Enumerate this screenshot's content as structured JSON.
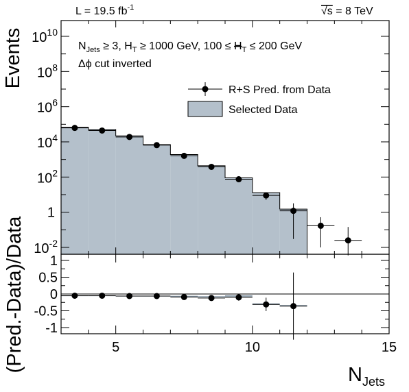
{
  "header": {
    "luminosity": "L = 19.5 fb",
    "luminosity_exp": "-1",
    "energy_sqrt": "√s",
    "energy_rest": " = 8 TeV"
  },
  "annotation": {
    "line1": {
      "n": "N",
      "n_sub": "Jets",
      "ge3": " ≥ 3, H",
      "t_sub": "T",
      "ht_cut": " ≥ 1000 GeV, 100 ≤ ",
      "mht": "H",
      "t_sub2": "T",
      "mht_cut": " ≤ 200 GeV"
    },
    "line2": "Δϕ cut inverted"
  },
  "chart_data": [
    {
      "type": "bar",
      "panel": "top",
      "title": "",
      "ylabel": "Events",
      "xlabel": "",
      "y_scale": "log",
      "ylim": [
        0.003,
        100000000000.0
      ],
      "xlim": [
        3,
        15
      ],
      "y_tick_labels": [
        "10^-2",
        "1",
        "10^2",
        "10^4",
        "10^6",
        "10^8",
        "10^10"
      ],
      "legend": {
        "position": "top-right",
        "entries": [
          "R+S Pred. from Data",
          "Selected Data"
        ]
      },
      "series": [
        {
          "name": "Selected Data",
          "style": "filled-histogram",
          "color": "#b4c0cb",
          "bin_edges": [
            3,
            4,
            5,
            6,
            7,
            8,
            9,
            10,
            11,
            12
          ],
          "values": [
            68000,
            50000,
            22000,
            7000,
            1900,
            440,
            90,
            13,
            1.5
          ]
        },
        {
          "name": "R+S Pred. from Data",
          "style": "points-with-errors",
          "color": "#000000",
          "x": [
            3.5,
            4.5,
            5.5,
            6.5,
            7.5,
            8.5,
            9.5,
            10.5,
            11.5,
            12.5,
            13.5
          ],
          "y": [
            62000,
            44000,
            19000,
            6500,
            1600,
            380,
            75,
            9,
            1.2,
            0.17,
            0.025
          ],
          "y_err_low": [
            6000,
            4000,
            2000,
            600,
            200,
            50,
            15,
            4,
            1.17,
            0.16,
            0.022
          ],
          "y_err_high": [
            6000,
            4000,
            2000,
            600,
            200,
            50,
            15,
            4,
            2.0,
            0.35,
            0.12
          ]
        }
      ]
    },
    {
      "type": "scatter",
      "panel": "bottom",
      "title": "",
      "ylabel": "(Pred.-Data)/Data",
      "xlabel": "N",
      "xlabel_sub": "Jets",
      "xlim": [
        3,
        15
      ],
      "ylim": [
        -1.2,
        1.2
      ],
      "x_tick_labels": [
        "5",
        "10",
        "15"
      ],
      "y_tick_labels": [
        "-1",
        "-0.5",
        "0",
        "0.5",
        "1"
      ],
      "series": [
        {
          "name": "",
          "x": [
            3.5,
            4.5,
            5.5,
            6.5,
            7.5,
            8.5,
            9.5,
            10.5,
            11.5
          ],
          "y": [
            -0.05,
            -0.05,
            -0.06,
            -0.06,
            -0.09,
            -0.12,
            -0.1,
            -0.31,
            -0.36
          ],
          "y_err": [
            0.03,
            0.03,
            0.03,
            0.03,
            0.04,
            0.05,
            0.1,
            0.2,
            1.0
          ],
          "band_y": [
            -0.05,
            -0.05,
            -0.06,
            -0.06,
            -0.07,
            -0.08,
            -0.06,
            -0.3,
            -0.35
          ],
          "band_err": [
            0.01,
            0.01,
            0.01,
            0.01,
            0.015,
            0.015,
            0.02,
            0.02,
            0.02
          ]
        }
      ]
    }
  ]
}
